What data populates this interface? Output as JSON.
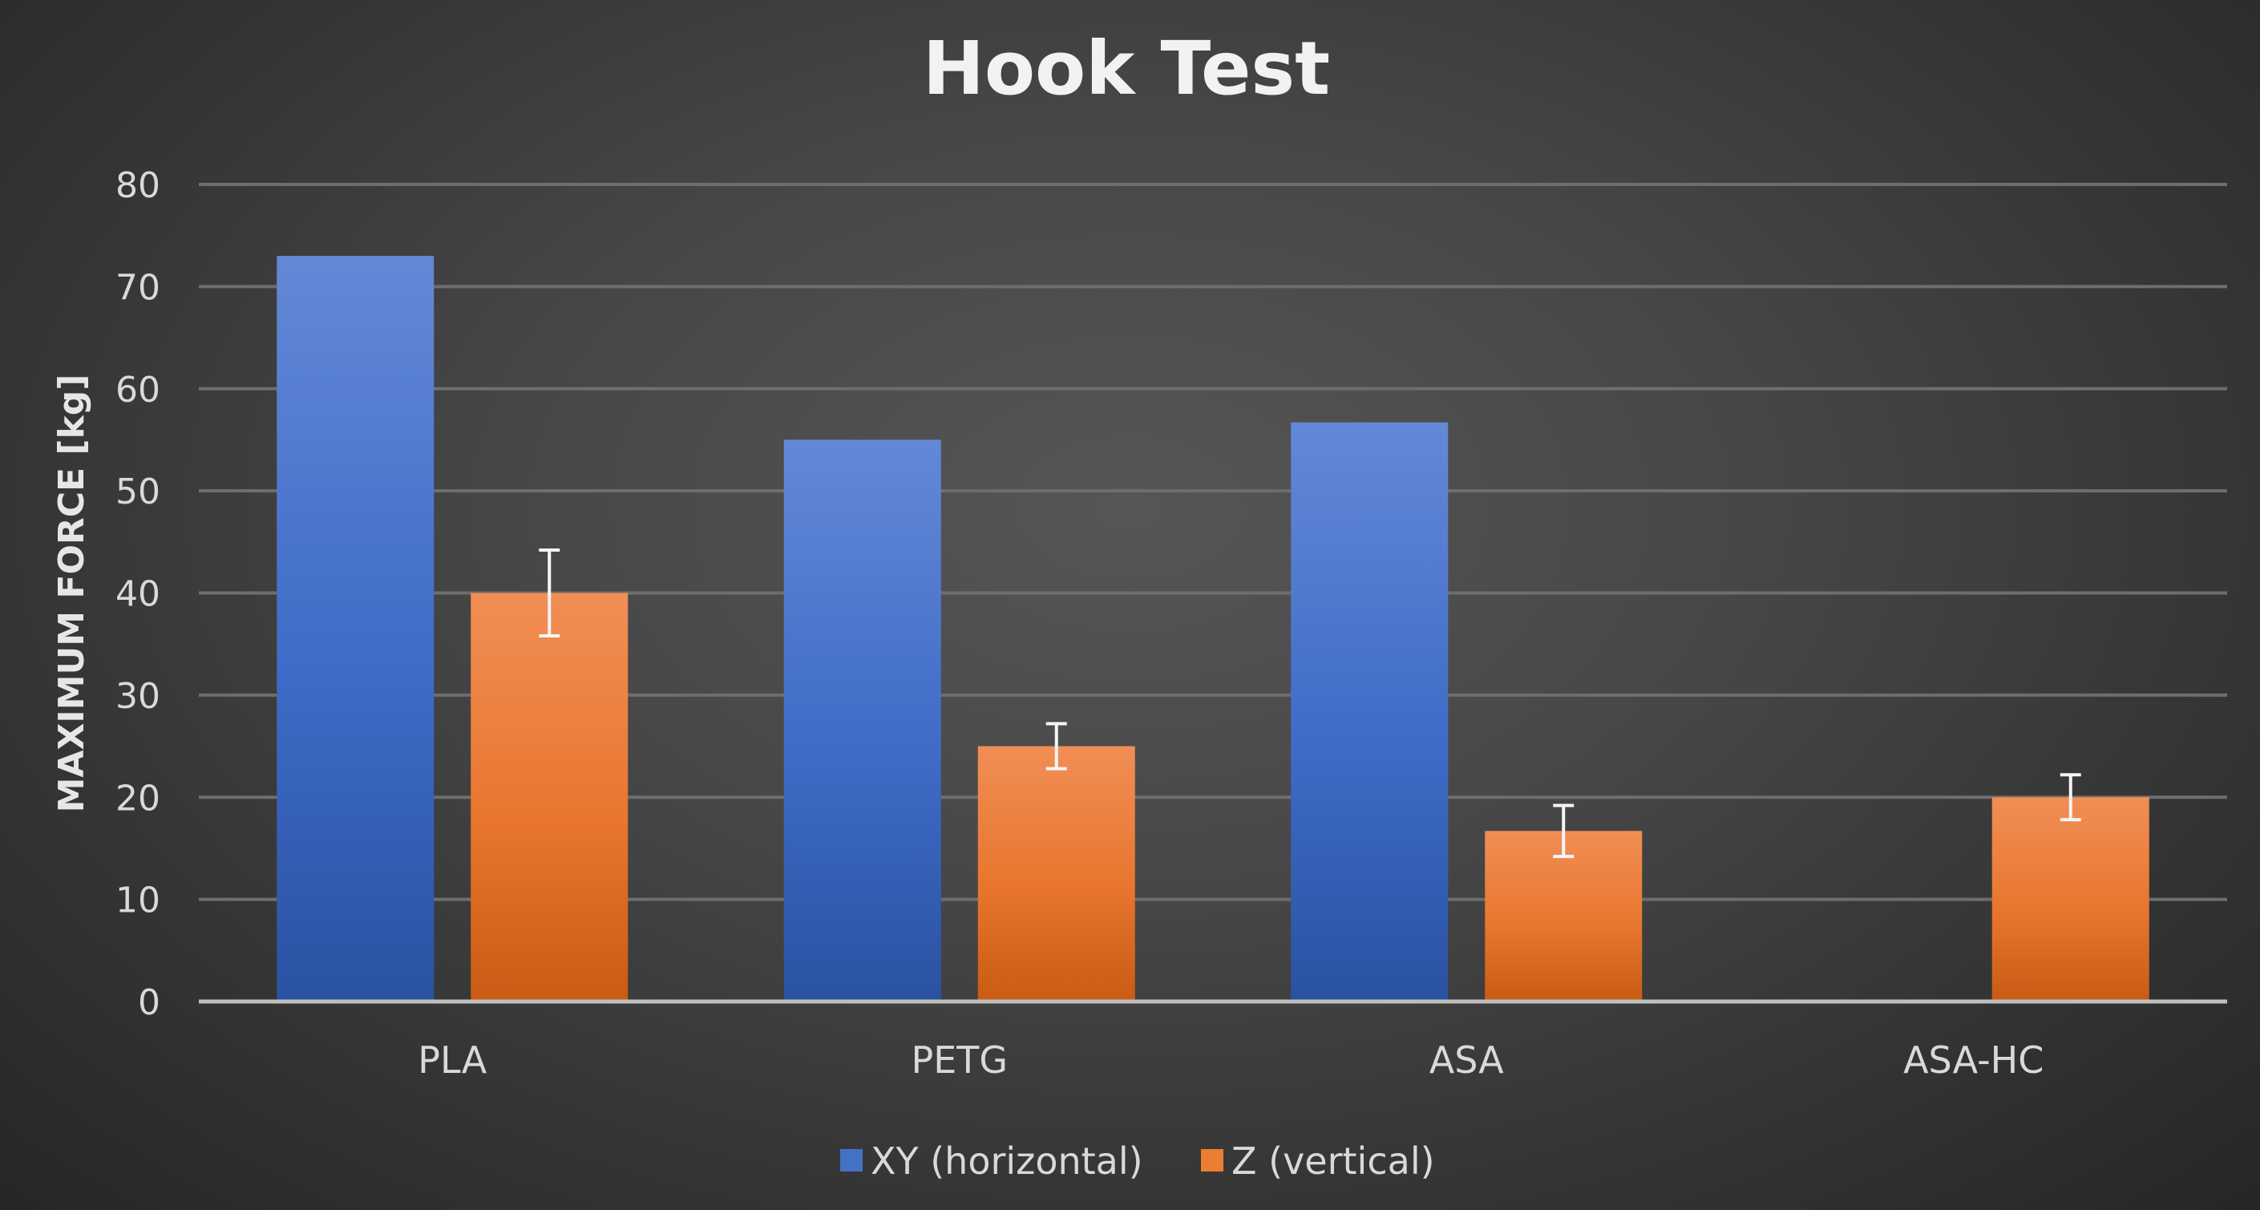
{
  "chart_data": {
    "type": "bar",
    "title": "Hook Test",
    "xlabel": "",
    "ylabel": "MAXIMUM FORCE [kg]",
    "ylim": [
      0,
      80
    ],
    "yticks": [
      0,
      10,
      20,
      30,
      40,
      50,
      60,
      70,
      80
    ],
    "grid": true,
    "legend_position": "bottom",
    "categories": [
      "PLA",
      "PETG",
      "ASA",
      "ASA-HC"
    ],
    "series": [
      {
        "name": "XY (horizontal)",
        "color": "#4472c4",
        "values": [
          73,
          55,
          56.7,
          null
        ],
        "errors": [
          null,
          null,
          null,
          null
        ]
      },
      {
        "name": "Z (vertical)",
        "color": "#ed7d31",
        "values": [
          40,
          25,
          16.7,
          20
        ],
        "errors": [
          4.2,
          2.2,
          2.5,
          2.2
        ]
      }
    ]
  }
}
